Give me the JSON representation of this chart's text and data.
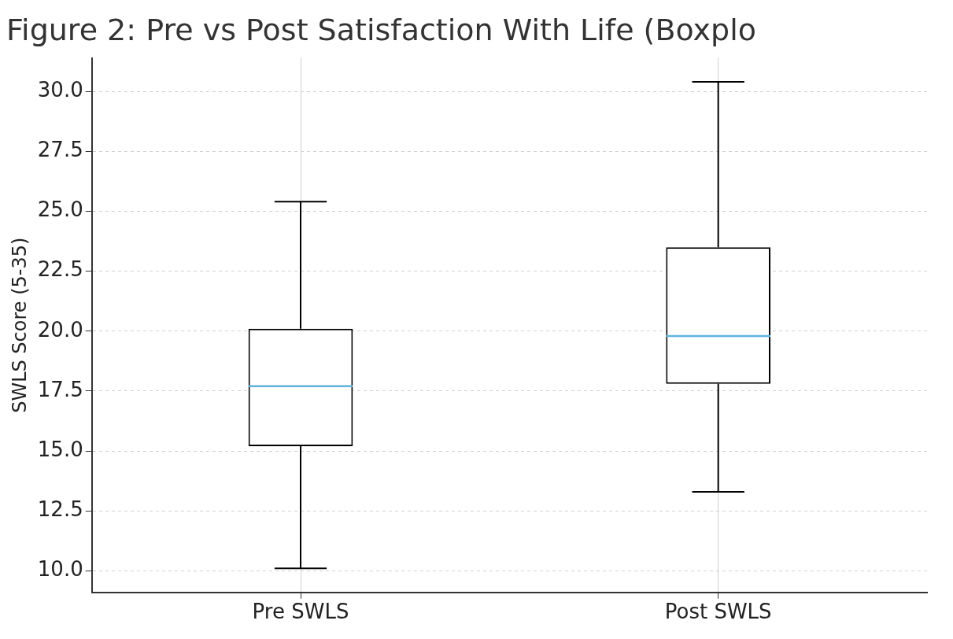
{
  "chart_data": {
    "type": "box",
    "title": "Figure 2: Pre vs Post Satisfaction With Life (Boxplo",
    "ylabel": "SWLS Score (5-35)",
    "categories": [
      "Pre SWLS",
      "Post SWLS"
    ],
    "boxes": [
      {
        "low": 10.1,
        "q1": 15.2,
        "median": 17.7,
        "q3": 20.1,
        "high": 25.4
      },
      {
        "low": 13.3,
        "q1": 17.8,
        "median": 19.8,
        "q3": 23.5,
        "high": 30.4
      }
    ],
    "color": "#000000",
    "ylim": [
      9.1,
      31.4
    ],
    "yticks": [
      {
        "value": 10,
        "label": "10.0"
      },
      12.5,
      {
        "value": 15,
        "label": "15.0"
      },
      17.5,
      {
        "value": 20,
        "label": "20.0"
      },
      22.5,
      {
        "value": 25,
        "label": "25.0"
      },
      27.5,
      {
        "value": 30,
        "label": "30.0"
      }
    ],
    "grid": true,
    "legend": false
  }
}
